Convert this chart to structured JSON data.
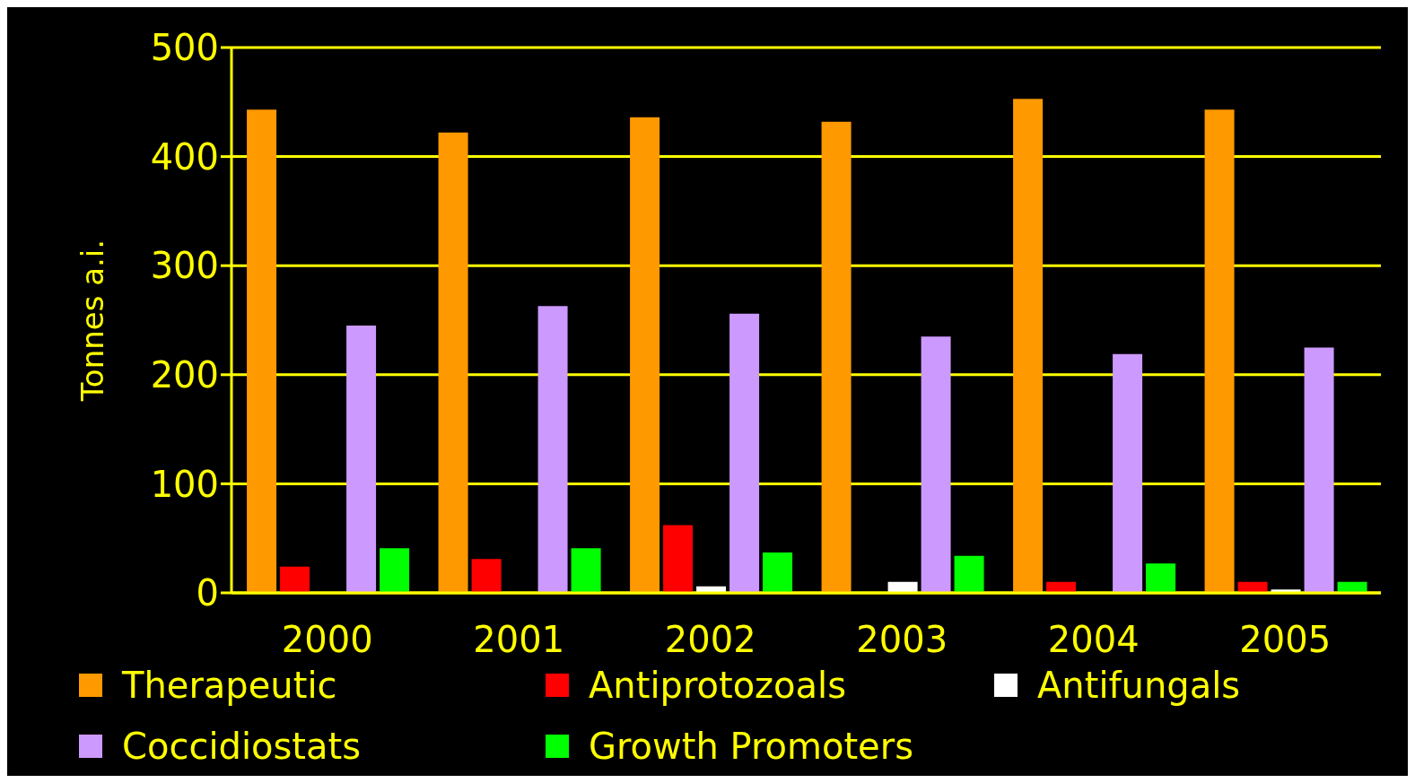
{
  "chart_data": {
    "type": "bar",
    "ylabel": "Tonnes a.i.",
    "categories": [
      "2000",
      "2001",
      "2002",
      "2003",
      "2004",
      "2005"
    ],
    "series": [
      {
        "name": "Therapeutic",
        "color": "#ff9900",
        "values": [
          443,
          422,
          436,
          432,
          453,
          443
        ]
      },
      {
        "name": "Antiprotozoals",
        "color": "#ff0000",
        "values": [
          24,
          31,
          62,
          0,
          10,
          10
        ]
      },
      {
        "name": "Antifungals",
        "color": "#ffffff",
        "values": [
          0,
          0,
          6,
          10,
          0,
          3
        ]
      },
      {
        "name": "Coccidiostats",
        "color": "#cc99ff",
        "values": [
          245,
          263,
          256,
          235,
          219,
          225
        ]
      },
      {
        "name": "Growth Promoters",
        "color": "#00ff00",
        "values": [
          41,
          41,
          37,
          34,
          27,
          10
        ]
      }
    ],
    "ylim": [
      0,
      500
    ],
    "yticks": [
      0,
      100,
      200,
      300,
      400,
      500
    ],
    "grid": "y",
    "legend": "bottom"
  }
}
